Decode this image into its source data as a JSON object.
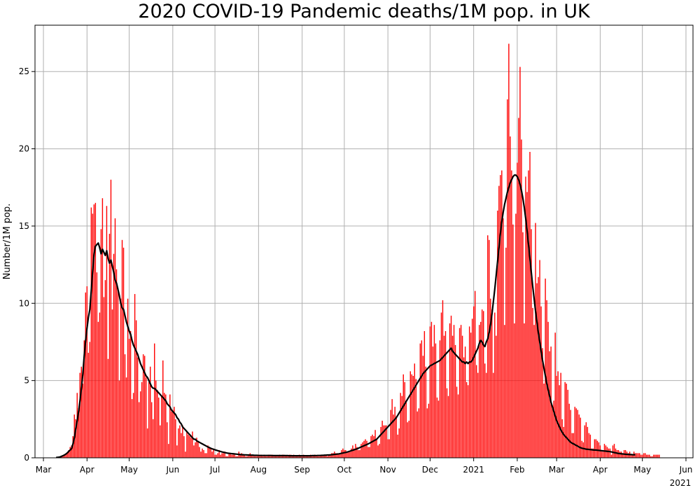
{
  "chart_data": {
    "type": "bar",
    "title": "2020 COVID-19 Pandemic deaths/1M pop. in UK",
    "xlabel": "",
    "ylabel": "Number/1M pop.",
    "ylim": [
      0,
      28
    ],
    "grid": true,
    "colors": {
      "bars": "#ff0000",
      "line": "#000000",
      "grid": "#b0b0b0"
    },
    "x_ticks": [
      "Mar",
      "Apr",
      "May",
      "Jun",
      "Jul",
      "Aug",
      "Sep",
      "Oct",
      "Nov",
      "Dec",
      "2021",
      "Feb",
      "Mar",
      "Apr",
      "May",
      "Jun"
    ],
    "x_ticks_secondary": [
      "2021"
    ],
    "y_ticks": [
      "0",
      "5",
      "10",
      "15",
      "20",
      "25"
    ],
    "y_tick_values": [
      0,
      5,
      10,
      15,
      20,
      25
    ],
    "series": [
      {
        "type": "bar",
        "x_start": "2020-03-10",
        "values": [
          0.02,
          0.03,
          0.05,
          0.05,
          0.1,
          0.15,
          0.2,
          0.3,
          0.35,
          0.5,
          0.7,
          0.8,
          1.4,
          2.8,
          2.5,
          4.2,
          3.2,
          5.5,
          5.9,
          4.8,
          7.6,
          10.7,
          11.1,
          6.8,
          7.5,
          16.2,
          15.8,
          16.4,
          16.5,
          12,
          8.8,
          9.4,
          14.8,
          16.8,
          10.4,
          11.5,
          16.3,
          6.4,
          14.5,
          18,
          9.6,
          13.2,
          15.5,
          12.2,
          11,
          5,
          10.3,
          14.1,
          13.6,
          6.7,
          5.2,
          10.3,
          7.7,
          8.2,
          3.8,
          4.2,
          10.6,
          8.9,
          6.5,
          3.6,
          4.3,
          4.9,
          6.7,
          6.6,
          5.2,
          1.9,
          4.9,
          5.9,
          3.6,
          2.5,
          7.4,
          5,
          4.4,
          3.9,
          2.1,
          4,
          6.3,
          4.2,
          4.1,
          2.3,
          0.9,
          4.1,
          3,
          3.1,
          3.3,
          2.5,
          0.8,
          1.9,
          2.1,
          1.6,
          2.1,
          1.4,
          0.4,
          1.7,
          1.5,
          1.4,
          1.3,
          1.7,
          0.8,
          1,
          1.3,
          1.1,
          0.7,
          0.4,
          0.6,
          0.5,
          0.3,
          0.3,
          0.8,
          0.7,
          0.6,
          0.4,
          0.6,
          0.2,
          0.2,
          0.3,
          0.5,
          0.2,
          0.3,
          0.3,
          0.4,
          0.1,
          0.1,
          0.3,
          0.3,
          0.2,
          0.2,
          0.2,
          0.1,
          0.1,
          0.4,
          0.2,
          0.3,
          0.2,
          0.2,
          0.1,
          0.1,
          0.2,
          0.3,
          0.2,
          0.2,
          0.1,
          0.1,
          0.1,
          0.2,
          0.2,
          0.2,
          0.1,
          0.2,
          0.1,
          0.1,
          0.2,
          0.2,
          0.2,
          0.2,
          0.1,
          0.1,
          0.1,
          0.1,
          0.2,
          0.1,
          0.2,
          0.2,
          0.1,
          0.1,
          0.1,
          0.2,
          0.2,
          0.1,
          0.2,
          0.1,
          0.1,
          0.1,
          0.2,
          0.1,
          0.1,
          0.2,
          0.1,
          0.1,
          0.1,
          0.1,
          0.2,
          0.1,
          0.1,
          0.2,
          0.1,
          0.1,
          0.1,
          0.2,
          0.2,
          0.2,
          0.2,
          0.2,
          0.1,
          0.2,
          0.2,
          0.3,
          0.3,
          0.4,
          0.3,
          0.3,
          0.2,
          0.3,
          0.5,
          0.6,
          0.5,
          0.5,
          0.4,
          0.4,
          0.4,
          0.6,
          0.8,
          0.6,
          0.9,
          0.7,
          0.5,
          0.5,
          0.9,
          1.0,
          1.1,
          1.2,
          1.1,
          0.7,
          0.7,
          1.4,
          1.5,
          1.4,
          1.8,
          1.2,
          0.8,
          0.9,
          2.0,
          2.4,
          2.1,
          2.1,
          2.1,
          1.2,
          1.2,
          3.1,
          3.8,
          2.8,
          3.3,
          2.7,
          1.5,
          1.9,
          4.2,
          4.0,
          5.4,
          4.9,
          3.6,
          2.3,
          2.4,
          5.6,
          5.4,
          5.3,
          6.1,
          5.1,
          3.0,
          3.2,
          7.4,
          7.6,
          6.6,
          8.2,
          5.9,
          3.2,
          3.5,
          8.5,
          8.8,
          7.2,
          8.6,
          7.4,
          3.9,
          3.7,
          7.6,
          9.4,
          10.2,
          7.9,
          8.2,
          4.5,
          4.0,
          8.7,
          9.2,
          7.9,
          8.6,
          7.3,
          4.6,
          4.1,
          8.4,
          8.6,
          7.9,
          6.5,
          7.2,
          4.9,
          4.7,
          8.5,
          8.1,
          9.0,
          9.8,
          10.8,
          6.0,
          5.5,
          8.6,
          8.8,
          9.6,
          9.5,
          6.1,
          5.5,
          14.4,
          14.1,
          10.3,
          9.6,
          5.5,
          9.4,
          7.9,
          16.0,
          17.6,
          18.3,
          18.6,
          15.5,
          8.6,
          13.6,
          23.2,
          26.8,
          20.8,
          18.6,
          15.1,
          8.7,
          15.8,
          19.1,
          22.0,
          25.3,
          20.6,
          14.6,
          8.7,
          18.2,
          17.2,
          18.6,
          19.8,
          14.8,
          9.7,
          8.6,
          15.2,
          11.3,
          11.7,
          12.8,
          9.8,
          7.1,
          4.8,
          11.6,
          10.2,
          8.8,
          6.9,
          7.2,
          3.4,
          3.7,
          8.1,
          5.3,
          5.6,
          4.7,
          5.5,
          2.5,
          2.0,
          4.9,
          4.8,
          4.4,
          3.5,
          3.1,
          1.6,
          1.6,
          3.3,
          3.2,
          3.1,
          2.8,
          2.6,
          1.1,
          1.0,
          2.1,
          2.3,
          2.0,
          1.6,
          1.5,
          0.6,
          0.6,
          1.2,
          1.2,
          1.1,
          1.0,
          0.8,
          0.4,
          0.4,
          0.9,
          0.8,
          0.7,
          0.6,
          0.6,
          0.2,
          0.8,
          0.9,
          0.6,
          0.5,
          0.5,
          0.4,
          0.4,
          0.3,
          0.5,
          0.5,
          0.4,
          0.3,
          0.4,
          0.2,
          0.2,
          0.4,
          0.3,
          0.3,
          0.3,
          0.3,
          0.2,
          0.2,
          0.3,
          0.3,
          0.2,
          0.2,
          0.2,
          0.1,
          0.1,
          0.2,
          0.2,
          0.2,
          0.2,
          0.2
        ]
      },
      {
        "type": "line",
        "x_start": "2020-03-10",
        "values": [
          0.02,
          0.03,
          0.04,
          0.06,
          0.1,
          0.14,
          0.19,
          0.24,
          0.32,
          0.42,
          0.5,
          0.6,
          0.9,
          1.3,
          1.9,
          2.4,
          3.0,
          3.7,
          4.5,
          5.4,
          6.6,
          7.6,
          8.4,
          9.1,
          9.6,
          10.8,
          12.1,
          13.2,
          13.7,
          13.8,
          13.9,
          13.6,
          13.2,
          13.5,
          13.3,
          13.1,
          13.4,
          12.9,
          12.6,
          12.8,
          12.4,
          12.0,
          11.5,
          11.3,
          10.9,
          10.5,
          10.0,
          9.7,
          9.6,
          9.2,
          8.8,
          8.5,
          8.2,
          8.0,
          7.6,
          7.3,
          7.1,
          6.9,
          6.7,
          6.4,
          6.1,
          5.9,
          5.7,
          5.5,
          5.3,
          5.2,
          5.0,
          4.8,
          4.6,
          4.5,
          4.5,
          4.4,
          4.3,
          4.2,
          4.1,
          4.0,
          3.9,
          3.8,
          3.7,
          3.5,
          3.4,
          3.3,
          3.1,
          3.0,
          2.9,
          2.8,
          2.6,
          2.5,
          2.3,
          2.2,
          2.0,
          1.9,
          1.8,
          1.7,
          1.6,
          1.5,
          1.4,
          1.3,
          1.2,
          1.2,
          1.1,
          1.05,
          1.0,
          0.95,
          0.9,
          0.85,
          0.8,
          0.75,
          0.7,
          0.66,
          0.62,
          0.58,
          0.55,
          0.52,
          0.49,
          0.46,
          0.43,
          0.41,
          0.38,
          0.36,
          0.34,
          0.32,
          0.3,
          0.29,
          0.28,
          0.27,
          0.26,
          0.25,
          0.24,
          0.23,
          0.22,
          0.21,
          0.2,
          0.2,
          0.19,
          0.19,
          0.18,
          0.18,
          0.17,
          0.17,
          0.17,
          0.16,
          0.16,
          0.16,
          0.15,
          0.15,
          0.15,
          0.15,
          0.15,
          0.15,
          0.15,
          0.15,
          0.15,
          0.15,
          0.14,
          0.14,
          0.14,
          0.14,
          0.14,
          0.14,
          0.14,
          0.14,
          0.14,
          0.14,
          0.14,
          0.14,
          0.13,
          0.13,
          0.13,
          0.13,
          0.13,
          0.13,
          0.13,
          0.13,
          0.13,
          0.13,
          0.13,
          0.13,
          0.13,
          0.13,
          0.13,
          0.13,
          0.14,
          0.14,
          0.14,
          0.14,
          0.15,
          0.15,
          0.15,
          0.16,
          0.16,
          0.17,
          0.17,
          0.18,
          0.18,
          0.19,
          0.2,
          0.21,
          0.22,
          0.23,
          0.24,
          0.25,
          0.27,
          0.29,
          0.31,
          0.33,
          0.35,
          0.37,
          0.4,
          0.43,
          0.46,
          0.49,
          0.52,
          0.55,
          0.58,
          0.62,
          0.66,
          0.7,
          0.74,
          0.78,
          0.82,
          0.86,
          0.9,
          0.95,
          1.0,
          1.05,
          1.1,
          1.15,
          1.2,
          1.3,
          1.4,
          1.5,
          1.6,
          1.7,
          1.8,
          1.9,
          2.0,
          2.1,
          2.2,
          2.3,
          2.4,
          2.5,
          2.6,
          2.75,
          2.9,
          3.05,
          3.2,
          3.35,
          3.5,
          3.65,
          3.8,
          3.95,
          4.1,
          4.25,
          4.4,
          4.55,
          4.7,
          4.85,
          5.0,
          5.15,
          5.3,
          5.45,
          5.55,
          5.65,
          5.75,
          5.85,
          5.95,
          6.0,
          6.05,
          6.1,
          6.15,
          6.2,
          6.25,
          6.3,
          6.4,
          6.5,
          6.6,
          6.7,
          6.8,
          6.9,
          7.0,
          7.1,
          6.9,
          6.8,
          6.7,
          6.6,
          6.5,
          6.4,
          6.3,
          6.2,
          6.2,
          6.1,
          6.2,
          6.1,
          6.2,
          6.2,
          6.3,
          6.5,
          6.7,
          6.9,
          7.1,
          7.4,
          7.6,
          7.5,
          7.3,
          7.2,
          7.5,
          7.7,
          8.1,
          8.6,
          9.3,
          10.1,
          10.9,
          11.8,
          12.7,
          13.6,
          14.5,
          15.3,
          15.9,
          16.4,
          16.8,
          17.2,
          17.5,
          17.8,
          18.0,
          18.2,
          18.3,
          18.3,
          18.2,
          18.0,
          17.7,
          17.3,
          16.8,
          16.2,
          15.5,
          14.7,
          13.8,
          12.9,
          12.0,
          11.1,
          10.3,
          9.5,
          8.8,
          8.1,
          7.5,
          6.9,
          6.3,
          5.8,
          5.3,
          4.8,
          4.4,
          4.0,
          3.6,
          3.3,
          3.0,
          2.7,
          2.4,
          2.2,
          2.0,
          1.8,
          1.65,
          1.5,
          1.4,
          1.3,
          1.2,
          1.1,
          1.0,
          0.95,
          0.9,
          0.85,
          0.8,
          0.75,
          0.7,
          0.65,
          0.62,
          0.6,
          0.58,
          0.56,
          0.55,
          0.54,
          0.53,
          0.52,
          0.51,
          0.5,
          0.5,
          0.49,
          0.48,
          0.47,
          0.46,
          0.45,
          0.44,
          0.43,
          0.42,
          0.41,
          0.4,
          0.38,
          0.36,
          0.34,
          0.32,
          0.3,
          0.28,
          0.27,
          0.26,
          0.25,
          0.24,
          0.23,
          0.22,
          0.22,
          0.21,
          0.21,
          0.2,
          0.2,
          0.2
        ]
      }
    ]
  }
}
